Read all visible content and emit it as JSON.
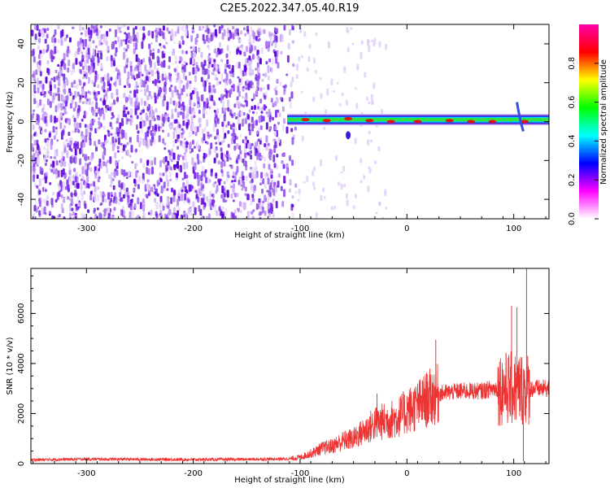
{
  "title": "C2E5.2022.347.05.40.R19",
  "chart_data": [
    {
      "type": "heatmap",
      "xlabel": "Height of straight line (km)",
      "ylabel": "Frequency (Hz)",
      "xlim": [
        -352,
        133
      ],
      "ylim": [
        -50,
        50
      ],
      "xticks": [
        -300,
        -200,
        -100,
        0,
        100
      ],
      "yticks": [
        -40,
        -20,
        0,
        20,
        40
      ],
      "grid": false,
      "noise_region": {
        "x_range": [
          -352,
          -105
        ],
        "y_range": [
          -50,
          50
        ],
        "color": "#7a2ee6"
      },
      "signal_band": {
        "x_range": [
          -112,
          133
        ],
        "center_frequency": 1,
        "peak_points": [
          {
            "x": -95,
            "y": 1
          },
          {
            "x": -75,
            "y": 0.5
          },
          {
            "x": -55,
            "y": 1.5
          },
          {
            "x": -35,
            "y": 0.5
          },
          {
            "x": -15,
            "y": 0
          },
          {
            "x": 10,
            "y": 0
          },
          {
            "x": 40,
            "y": 0.5
          },
          {
            "x": 60,
            "y": 0
          },
          {
            "x": 80,
            "y": 0
          },
          {
            "x": 110,
            "y": 0
          }
        ]
      },
      "colorbar": {
        "label": "Normalized spectral amplitude",
        "range": [
          0,
          1
        ],
        "ticks": [
          "0.0",
          "0.2",
          "0.4",
          "0.6",
          "0.8"
        ],
        "colors": [
          "#ffffff",
          "#ff00ff",
          "#0000ff",
          "#00ffff",
          "#00ff00",
          "#ffff00",
          "#ff0000",
          "#ff00aa"
        ]
      }
    },
    {
      "type": "line",
      "xlabel": "Height of straight line (km)",
      "ylabel": "SNR (10 * v/v)",
      "xlim": [
        -352,
        133
      ],
      "ylim": [
        0,
        7800
      ],
      "xticks": [
        -300,
        -200,
        -100,
        0,
        100
      ],
      "yticks": [
        0,
        2000,
        4000,
        6000
      ],
      "grid": false,
      "series": [
        {
          "color": "#ee3333",
          "x": [
            -352,
            -300,
            -250,
            -200,
            -150,
            -110,
            -100,
            -90,
            -80,
            -70,
            -60,
            -50,
            -40,
            -30,
            -20,
            -10,
            0,
            10,
            20,
            25,
            30,
            40,
            50,
            60,
            70,
            80,
            90,
            100,
            110,
            120,
            133
          ],
          "y": [
            150,
            180,
            170,
            160,
            170,
            190,
            250,
            400,
            600,
            700,
            900,
            1000,
            1300,
            1600,
            1700,
            1800,
            2100,
            2300,
            2600,
            2700,
            2800,
            2850,
            2900,
            2900,
            2900,
            3000,
            3000,
            3000,
            3000,
            3000,
            3000
          ]
        }
      ],
      "spikes": [
        {
          "x": -28,
          "y": 2800
        },
        {
          "x": 27,
          "y": 4950
        },
        {
          "x": 98,
          "y": 6300
        },
        {
          "x": 103,
          "y": 6250
        },
        {
          "x": 112,
          "y": 7800
        },
        {
          "x": 109,
          "y": 100
        }
      ]
    }
  ]
}
